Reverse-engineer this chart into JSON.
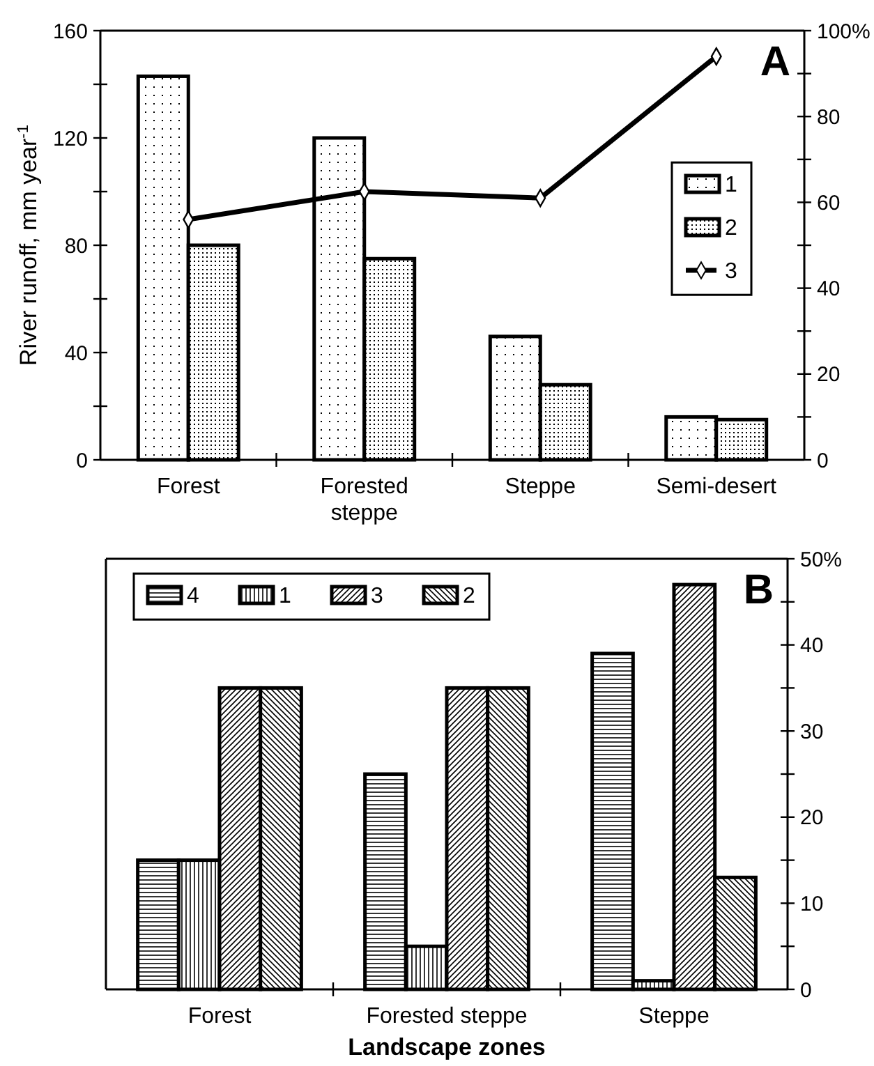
{
  "chart_data": [
    {
      "type": "bar",
      "categories": [
        "Forest",
        "Forested steppe",
        "Steppe",
        "Semi-desert"
      ],
      "ylabel": "River runoff, mm year$^{-1}$",
      "ylim": [
        0,
        160
      ],
      "yticks": [
        0,
        {
          "value": 20,
          "label": null
        },
        40,
        {
          "value": 60,
          "label": null
        },
        80,
        {
          "value": 100,
          "label": null
        },
        120,
        {
          "value": 140,
          "label": null
        },
        160
      ],
      "y2lim": [
        0,
        100
      ],
      "y2ticks": [
        0,
        {
          "value": 10,
          "label": null
        },
        20,
        {
          "value": 30,
          "label": null
        },
        40,
        {
          "value": 50,
          "label": null
        },
        60,
        {
          "value": 70,
          "label": null
        },
        80,
        {
          "value": 90,
          "label": null
        },
        {
          "value": 100,
          "label": "100%"
        }
      ],
      "legend": "right",
      "marker": "diamond",
      "annotations": [
        "A"
      ],
      "series": [
        {
          "name": "1",
          "color": "#000000",
          "values": [
            143,
            120,
            46,
            16
          ]
        },
        {
          "name": "2",
          "color": "#000000",
          "values": [
            80,
            75,
            28,
            15
          ]
        },
        {
          "name": "3",
          "type": "line",
          "axis": "y2",
          "color": "#000000",
          "values": [
            56,
            62.5,
            61,
            94
          ]
        }
      ]
    },
    {
      "type": "bar",
      "categories": [
        "Forest",
        "Forested steppe",
        "Steppe"
      ],
      "xlabel": "Landscape zones",
      "y2lim": [
        0,
        50
      ],
      "y2ticks": [
        0,
        {
          "value": 5,
          "label": null
        },
        10,
        {
          "value": 15,
          "label": null
        },
        20,
        {
          "value": 25,
          "label": null
        },
        30,
        {
          "value": 35,
          "label": null
        },
        40,
        {
          "value": 45,
          "label": null
        },
        {
          "value": 50,
          "label": "50%"
        }
      ],
      "legend": "top left",
      "annotations": [
        "B"
      ],
      "series": [
        {
          "name": "4",
          "axis": "y2",
          "color": "#000000",
          "values": [
            15,
            25,
            39
          ]
        },
        {
          "name": "1",
          "axis": "y2",
          "color": "#000000",
          "values": [
            15,
            5,
            1
          ]
        },
        {
          "name": "3",
          "axis": "y2",
          "color": "#000000",
          "values": [
            35,
            35,
            47
          ]
        },
        {
          "name": "2",
          "axis": "y2",
          "color": "#000000",
          "values": [
            35,
            35,
            13
          ]
        }
      ]
    }
  ]
}
